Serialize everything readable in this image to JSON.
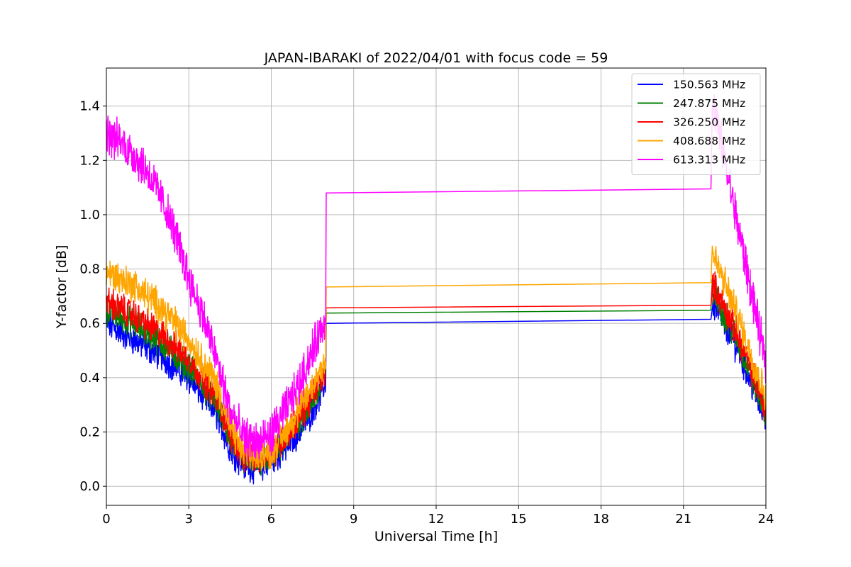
{
  "chart_data": {
    "type": "line",
    "title": "JAPAN-IBARAKI of 2022/04/01 with focus code = 59",
    "xlabel": "Universal Time [h]",
    "ylabel": "Y-factor [dB]",
    "xlim": [
      0,
      24
    ],
    "ylim": [
      -0.07,
      1.54
    ],
    "xticks": [
      0,
      3,
      6,
      9,
      12,
      15,
      18,
      21,
      24
    ],
    "xtick_labels": [
      "0",
      "3",
      "6",
      "9",
      "12",
      "15",
      "18",
      "21",
      "24"
    ],
    "yticks": [
      0.0,
      0.2,
      0.4,
      0.6,
      0.8,
      1.0,
      1.2,
      1.4
    ],
    "ytick_labels": [
      "0.0",
      "0.2",
      "0.4",
      "0.6",
      "0.8",
      "1.0",
      "1.2",
      "1.4"
    ],
    "grid": true,
    "legend_position": "top-right",
    "series": [
      {
        "name": "150.563 MHz",
        "color": "#0000ff",
        "noise": 0.045,
        "x": [
          0,
          1,
          2,
          3,
          4,
          4.5,
          5,
          5.5,
          6,
          6.5,
          7,
          7.5,
          7.98,
          8.0,
          22.0,
          22.05,
          23.0,
          23.5,
          24
        ],
        "y": [
          0.6,
          0.54,
          0.48,
          0.4,
          0.27,
          0.14,
          0.08,
          0.07,
          0.09,
          0.14,
          0.2,
          0.28,
          0.38,
          0.6,
          0.615,
          0.68,
          0.5,
          0.37,
          0.25
        ]
      },
      {
        "name": "247.875 MHz",
        "color": "#008000",
        "noise": 0.045,
        "x": [
          0,
          1,
          2,
          3,
          4,
          4.5,
          5,
          5.5,
          6,
          6.5,
          7,
          7.5,
          7.98,
          8.0,
          22.0,
          22.05,
          23.0,
          23.5,
          24
        ],
        "y": [
          0.65,
          0.6,
          0.53,
          0.44,
          0.31,
          0.17,
          0.1,
          0.09,
          0.11,
          0.17,
          0.24,
          0.31,
          0.41,
          0.638,
          0.648,
          0.72,
          0.53,
          0.4,
          0.27
        ]
      },
      {
        "name": "326.250 MHz",
        "color": "#ff0000",
        "noise": 0.045,
        "x": [
          0,
          1,
          2,
          3,
          4,
          4.5,
          5,
          5.5,
          6,
          6.5,
          7,
          7.5,
          7.98,
          8.0,
          22.0,
          22.05,
          23.0,
          23.5,
          24
        ],
        "y": [
          0.68,
          0.63,
          0.56,
          0.47,
          0.33,
          0.19,
          0.11,
          0.1,
          0.12,
          0.18,
          0.25,
          0.33,
          0.43,
          0.657,
          0.667,
          0.75,
          0.55,
          0.42,
          0.28
        ]
      },
      {
        "name": "408.688 MHz",
        "color": "#ffa500",
        "noise": 0.05,
        "x": [
          0,
          1,
          2,
          3,
          4,
          4.5,
          5,
          5.5,
          6,
          6.5,
          7,
          7.5,
          7.98,
          8.0,
          22.0,
          22.05,
          23.0,
          23.5,
          24
        ],
        "y": [
          0.79,
          0.74,
          0.66,
          0.54,
          0.38,
          0.22,
          0.12,
          0.11,
          0.13,
          0.2,
          0.28,
          0.37,
          0.47,
          0.734,
          0.75,
          0.86,
          0.62,
          0.47,
          0.33
        ]
      },
      {
        "name": "613.313 MHz",
        "color": "#ff00ff",
        "noise": 0.06,
        "x": [
          0,
          0.5,
          1,
          1.5,
          2,
          2.5,
          3,
          3.5,
          4,
          4.5,
          5,
          5.5,
          6,
          6.5,
          7,
          7.5,
          7.98,
          8.0,
          22.0,
          22.05,
          22.5,
          23,
          23.5,
          24
        ],
        "y": [
          1.3,
          1.27,
          1.22,
          1.16,
          1.06,
          0.93,
          0.77,
          0.63,
          0.47,
          0.28,
          0.18,
          0.16,
          0.19,
          0.28,
          0.37,
          0.5,
          0.62,
          1.08,
          1.095,
          1.42,
          1.2,
          0.95,
          0.7,
          0.45
        ]
      }
    ]
  }
}
